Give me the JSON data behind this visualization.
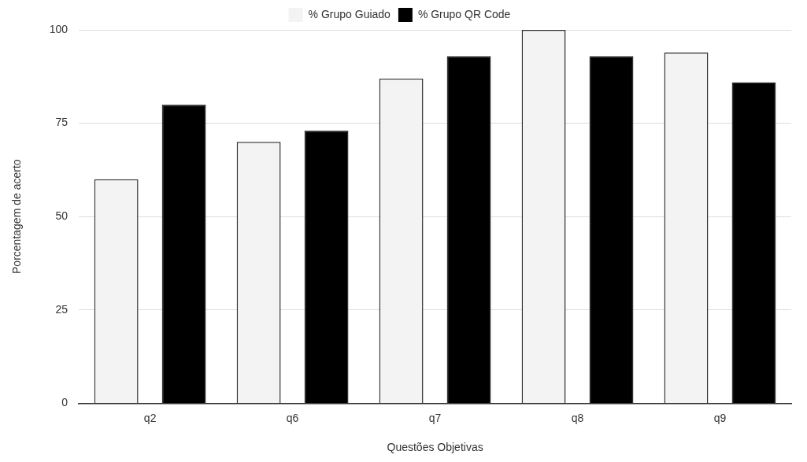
{
  "chart_data": {
    "type": "bar",
    "xlabel": "Questões Objetivas",
    "ylabel": "Porcentagem de acerto",
    "categories": [
      "q2",
      "q6",
      "q7",
      "q8",
      "q9"
    ],
    "series": [
      {
        "name": "% Grupo Guiado",
        "color": "#f3f3f3",
        "values": [
          60,
          70,
          87,
          100,
          94
        ]
      },
      {
        "name": "% Grupo QR Code",
        "color": "#000000",
        "values": [
          80,
          73,
          93,
          93,
          86
        ]
      }
    ],
    "ylim": [
      0,
      100
    ],
    "yticks": [
      0,
      25,
      50,
      75,
      100
    ],
    "grid": "y",
    "legend": "top"
  }
}
